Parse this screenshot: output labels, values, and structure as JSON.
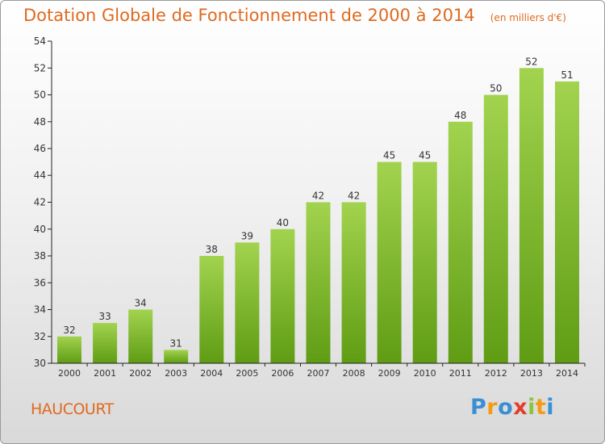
{
  "chart_data": {
    "type": "bar",
    "title": "Dotation Globale de Fonctionnement de 2000 à 2014",
    "subtitle": "(en milliers d'€)",
    "categories": [
      "2000",
      "2001",
      "2002",
      "2003",
      "2004",
      "2005",
      "2006",
      "2007",
      "2008",
      "2009",
      "2010",
      "2011",
      "2012",
      "2013",
      "2014"
    ],
    "values": [
      32,
      33,
      34,
      31,
      38,
      39,
      40,
      42,
      42,
      45,
      45,
      48,
      50,
      52,
      51
    ],
    "ylim": [
      30,
      54
    ],
    "yticks": [
      30,
      32,
      34,
      36,
      38,
      40,
      42,
      44,
      46,
      48,
      50,
      52,
      54
    ],
    "grid": false,
    "data_labels": true,
    "bar_color_top": "#a2d34f",
    "bar_color_bottom": "#5f9c14"
  },
  "commune": "HAUCOURT",
  "logo": {
    "letters": [
      "P",
      "r",
      "o",
      "x",
      "i",
      "t",
      "i"
    ],
    "colors": [
      "#3a8fd4",
      "#f39b12",
      "#3a8fd4",
      "#e43c2b",
      "#8bc43f",
      "#f39b12",
      "#3a8fd4"
    ]
  },
  "colors": {
    "accent": "#e0691e",
    "axis": "#222222",
    "text": "#333333"
  }
}
